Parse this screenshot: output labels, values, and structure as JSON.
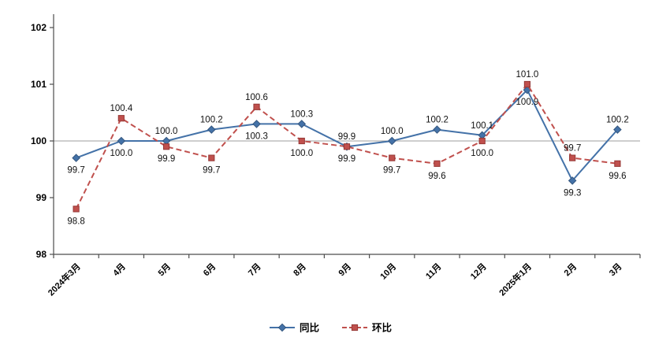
{
  "chart_data": {
    "type": "line",
    "title": "",
    "xlabel": "",
    "ylabel": "",
    "categories": [
      "2024年3月",
      "4月",
      "5月",
      "6月",
      "7月",
      "8月",
      "9月",
      "10月",
      "11月",
      "12月",
      "2025年1月",
      "2月",
      "3月"
    ],
    "series": [
      {
        "name": "同比",
        "color": "#4472a8",
        "marker_stroke": "#35577f",
        "marker": "diamond",
        "dash": false,
        "values": [
          99.7,
          100.0,
          100.0,
          100.2,
          100.3,
          100.3,
          99.9,
          100.0,
          100.2,
          100.1,
          100.9,
          99.3,
          100.2
        ],
        "label_pos": [
          "below",
          "below",
          "above",
          "above",
          "below",
          "above",
          "above",
          "above",
          "above",
          "above",
          "below",
          "below",
          "above"
        ]
      },
      {
        "name": "环比",
        "color": "#c0504d",
        "marker_stroke": "#953735",
        "marker": "square",
        "dash": true,
        "values": [
          98.8,
          100.4,
          99.9,
          99.7,
          100.6,
          100.0,
          99.9,
          99.7,
          99.6,
          100.0,
          101.0,
          99.7,
          99.6
        ],
        "label_pos": [
          "below",
          "above",
          "below",
          "below",
          "above",
          "below",
          "below",
          "below",
          "below",
          "below",
          "above",
          "above",
          "below"
        ]
      }
    ],
    "ylim": [
      98,
      102
    ],
    "yticks": [
      98,
      99,
      100,
      101,
      102
    ],
    "refline": 100,
    "grid": "off",
    "legend_position": "bottom",
    "axis_color": "#4d4d4d",
    "refline_color": "#9e9e9e"
  }
}
